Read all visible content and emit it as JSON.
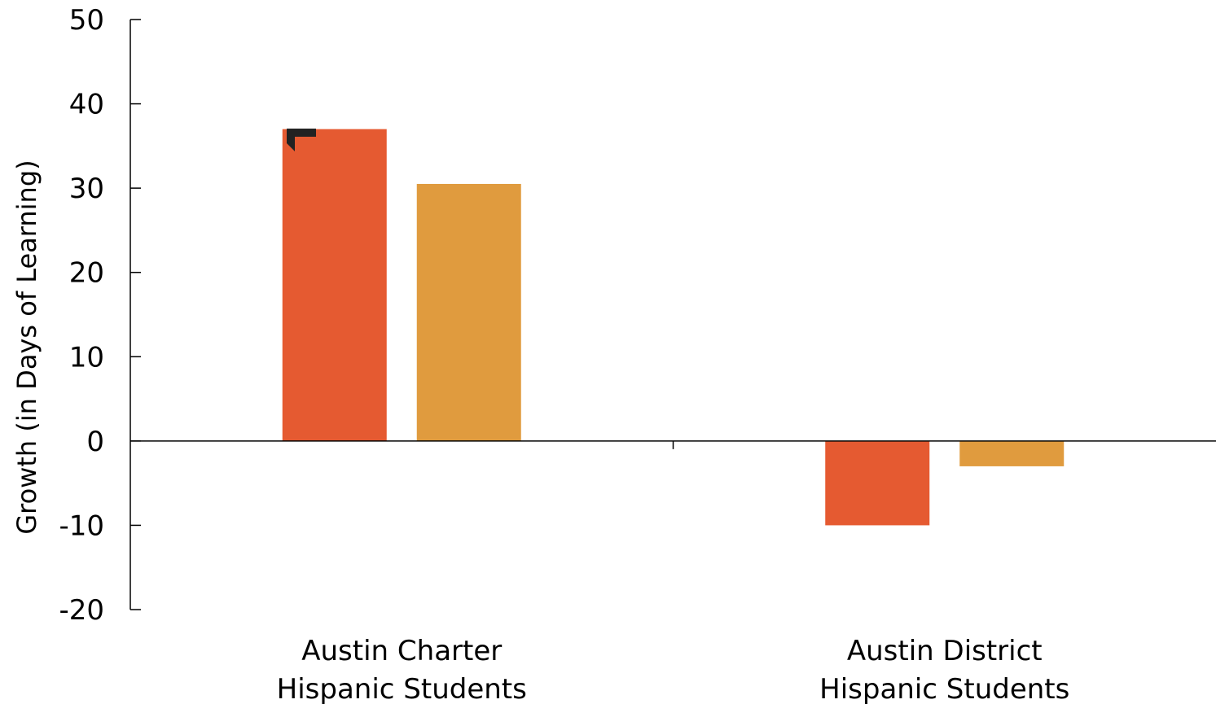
{
  "chart_data": {
    "type": "bar",
    "ylabel": "Growth (in Days of Learning)",
    "ylim": [
      -20,
      50
    ],
    "yticks": [
      "50",
      "40",
      "30",
      "20",
      "10",
      "0",
      "-10",
      "-20"
    ],
    "categories": [
      [
        "Austin Charter",
        "Hispanic Students"
      ],
      [
        "Austin District",
        "Hispanic Students"
      ]
    ],
    "series": [
      {
        "color": "#e55a31",
        "values": [
          37,
          -10
        ]
      },
      {
        "color": "#e09b3e",
        "values": [
          30.5,
          -3
        ]
      }
    ],
    "grid": false,
    "legend": "none"
  }
}
